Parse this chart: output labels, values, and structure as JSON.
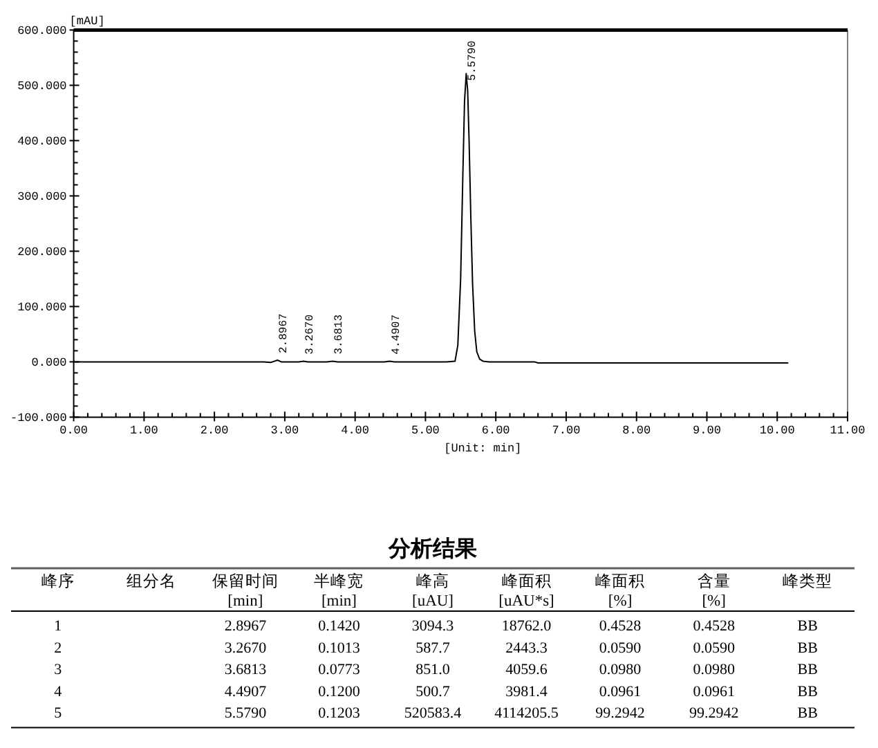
{
  "chart_data": [
    {
      "type": "line",
      "xlabel": "[Unit: min]",
      "ylabel": "[mAU]",
      "series": [
        {
          "color": "#000000",
          "x": [
            0,
            2.7,
            2.8,
            2.85,
            2.8967,
            2.95,
            3.0,
            3.2,
            3.267,
            3.33,
            3.6,
            3.6813,
            3.75,
            4.42,
            4.4907,
            4.56,
            5.3,
            5.42,
            5.46,
            5.5,
            5.53,
            5.555,
            5.579,
            5.6,
            5.62,
            5.645,
            5.67,
            5.7,
            5.73,
            5.77,
            5.82,
            5.9,
            6.55,
            6.6,
            10.15
          ],
          "values": [
            0,
            0,
            -1,
            1,
            3,
            0,
            0,
            0,
            1,
            0,
            0,
            1,
            0,
            0,
            1,
            0,
            0,
            1,
            30,
            150,
            330,
            470,
            521,
            490,
            400,
            260,
            140,
            55,
            18,
            5,
            1,
            0,
            0,
            -2,
            -2
          ]
        }
      ],
      "xlim": [
        0,
        11
      ],
      "ylim": [
        -100,
        600
      ],
      "xticks": [
        {
          "value": 0,
          "label": "0.00"
        },
        {
          "value": 0.2,
          "label": null
        },
        {
          "value": 0.4,
          "label": null
        },
        {
          "value": 0.6,
          "label": null
        },
        {
          "value": 0.8,
          "label": null
        },
        {
          "value": 1,
          "label": "1.00"
        },
        {
          "value": 1.2,
          "label": null
        },
        {
          "value": 1.4,
          "label": null
        },
        {
          "value": 1.6,
          "label": null
        },
        {
          "value": 1.8,
          "label": null
        },
        {
          "value": 2,
          "label": "2.00"
        },
        {
          "value": 2.2,
          "label": null
        },
        {
          "value": 2.4,
          "label": null
        },
        {
          "value": 2.6,
          "label": null
        },
        {
          "value": 2.8,
          "label": null
        },
        {
          "value": 3,
          "label": "3.00"
        },
        {
          "value": 3.2,
          "label": null
        },
        {
          "value": 3.4,
          "label": null
        },
        {
          "value": 3.6,
          "label": null
        },
        {
          "value": 3.8,
          "label": null
        },
        {
          "value": 4,
          "label": "4.00"
        },
        {
          "value": 4.2,
          "label": null
        },
        {
          "value": 4.4,
          "label": null
        },
        {
          "value": 4.6,
          "label": null
        },
        {
          "value": 4.8,
          "label": null
        },
        {
          "value": 5,
          "label": "5.00"
        },
        {
          "value": 5.2,
          "label": null
        },
        {
          "value": 5.4,
          "label": null
        },
        {
          "value": 5.6,
          "label": null
        },
        {
          "value": 5.8,
          "label": null
        },
        {
          "value": 6,
          "label": "6.00"
        },
        {
          "value": 6.2,
          "label": null
        },
        {
          "value": 6.4,
          "label": null
        },
        {
          "value": 6.6,
          "label": null
        },
        {
          "value": 6.8,
          "label": null
        },
        {
          "value": 7,
          "label": "7.00"
        },
        {
          "value": 7.2,
          "label": null
        },
        {
          "value": 7.4,
          "label": null
        },
        {
          "value": 7.6,
          "label": null
        },
        {
          "value": 7.8,
          "label": null
        },
        {
          "value": 8,
          "label": "8.00"
        },
        {
          "value": 8.2,
          "label": null
        },
        {
          "value": 8.4,
          "label": null
        },
        {
          "value": 8.6,
          "label": null
        },
        {
          "value": 8.8,
          "label": null
        },
        {
          "value": 9,
          "label": "9.00"
        },
        {
          "value": 9.2,
          "label": null
        },
        {
          "value": 9.4,
          "label": null
        },
        {
          "value": 9.6,
          "label": null
        },
        {
          "value": 9.8,
          "label": null
        },
        {
          "value": 10,
          "label": "10.00"
        },
        {
          "value": 10.2,
          "label": null
        },
        {
          "value": 10.4,
          "label": null
        },
        {
          "value": 10.6,
          "label": null
        },
        {
          "value": 10.8,
          "label": null
        },
        {
          "value": 11,
          "label": "11.00"
        }
      ],
      "yticks": [
        {
          "value": -100,
          "label": "-100.000"
        },
        {
          "value": -80,
          "label": null
        },
        {
          "value": -60,
          "label": null
        },
        {
          "value": -40,
          "label": null
        },
        {
          "value": -20,
          "label": null
        },
        {
          "value": 0,
          "label": "0.000"
        },
        {
          "value": 20,
          "label": null
        },
        {
          "value": 40,
          "label": null
        },
        {
          "value": 60,
          "label": null
        },
        {
          "value": 80,
          "label": null
        },
        {
          "value": 100,
          "label": "100.000"
        },
        {
          "value": 120,
          "label": null
        },
        {
          "value": 140,
          "label": null
        },
        {
          "value": 160,
          "label": null
        },
        {
          "value": 180,
          "label": null
        },
        {
          "value": 200,
          "label": "200.000"
        },
        {
          "value": 220,
          "label": null
        },
        {
          "value": 240,
          "label": null
        },
        {
          "value": 260,
          "label": null
        },
        {
          "value": 280,
          "label": null
        },
        {
          "value": 300,
          "label": "300.000"
        },
        {
          "value": 320,
          "label": null
        },
        {
          "value": 340,
          "label": null
        },
        {
          "value": 360,
          "label": null
        },
        {
          "value": 380,
          "label": null
        },
        {
          "value": 400,
          "label": "400.000"
        },
        {
          "value": 420,
          "label": null
        },
        {
          "value": 440,
          "label": null
        },
        {
          "value": 460,
          "label": null
        },
        {
          "value": 480,
          "label": null
        },
        {
          "value": 500,
          "label": "500.000"
        },
        {
          "value": 520,
          "label": null
        },
        {
          "value": 540,
          "label": null
        },
        {
          "value": 560,
          "label": null
        },
        {
          "value": 580,
          "label": null
        },
        {
          "value": 600,
          "label": "600.000"
        }
      ],
      "annotations": [
        {
          "text": "2.8967",
          "x": 2.8967,
          "y": 3
        },
        {
          "text": "3.2670",
          "x": 3.267,
          "y": 1
        },
        {
          "text": "3.6813",
          "x": 3.6813,
          "y": 1
        },
        {
          "text": "4.4907",
          "x": 4.4907,
          "y": 1
        },
        {
          "text": "5.5790",
          "x": 5.579,
          "y": 521
        }
      ]
    },
    {
      "type": "heatmap",
      "title": "分析结果",
      "ylabel": "峰序",
      "categories": [
        "组分名",
        "保留时间\n[min]",
        "半峰宽\n[min]",
        "峰高\n[uAU]",
        "峰面积\n[uAU*s]",
        "峰面积\n[%]",
        "含量\n[%]",
        "峰类型"
      ],
      "y_categories": [
        "1",
        "2",
        "3",
        "4",
        "5"
      ],
      "cells": [
        [
          null,
          null,
          null,
          null,
          null,
          null,
          null,
          null
        ],
        [
          null,
          null,
          null,
          null,
          null,
          null,
          null,
          null
        ],
        [
          null,
          null,
          null,
          null,
          null,
          null,
          null,
          null
        ],
        [
          null,
          null,
          null,
          null,
          null,
          null,
          null,
          null
        ],
        [
          null,
          null,
          null,
          null,
          null,
          null,
          null,
          null
        ]
      ],
      "cell_labels": [
        [
          null,
          "2.8967",
          "0.1420",
          "3094.3",
          "18762.0",
          "0.4528",
          "0.4528",
          "BB"
        ],
        [
          null,
          "3.2670",
          "0.1013",
          "587.7",
          "2443.3",
          "0.0590",
          "0.0590",
          "BB"
        ],
        [
          null,
          "3.6813",
          "0.0773",
          "851.0",
          "4059.6",
          "0.0980",
          "0.0980",
          "BB"
        ],
        [
          null,
          "4.4907",
          "0.1200",
          "500.7",
          "3981.4",
          "0.0961",
          "0.0961",
          "BB"
        ],
        [
          null,
          "5.5790",
          "0.1203",
          "520583.4",
          "4114205.5",
          "99.2942",
          "99.2942",
          "BB"
        ]
      ]
    }
  ]
}
